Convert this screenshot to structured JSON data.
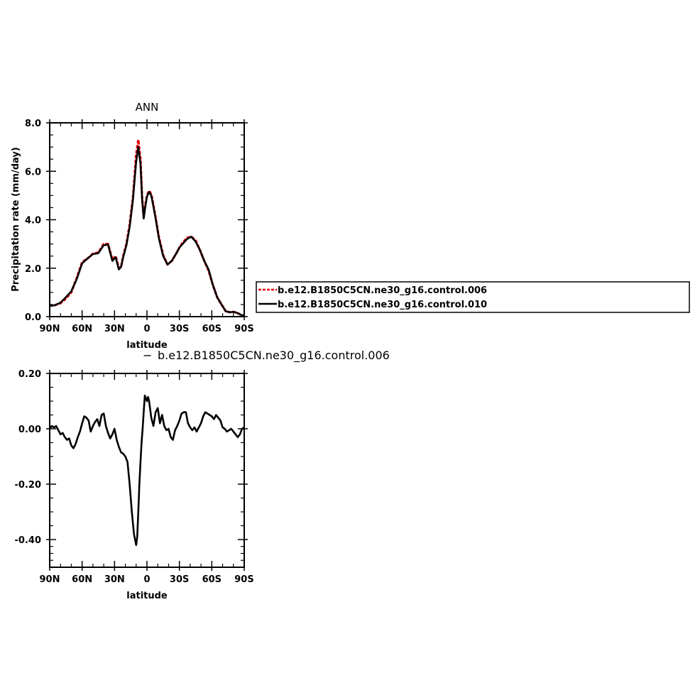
{
  "chart_data": [
    {
      "type": "line",
      "title": "ANN",
      "xlabel": "latitude",
      "ylabel": "Precipitation rate (mm/day)",
      "xlim": [
        -90,
        90
      ],
      "ylim": [
        0,
        8
      ],
      "x_reversed": true,
      "xticks": [
        {
          "value": 90,
          "label": "90N"
        },
        {
          "value": 60,
          "label": "60N"
        },
        {
          "value": 30,
          "label": "30N"
        },
        {
          "value": 0,
          "label": "0"
        },
        {
          "value": -30,
          "label": "30S"
        },
        {
          "value": -60,
          "label": "60S"
        },
        {
          "value": -90,
          "label": "90S"
        }
      ],
      "yticks": [
        {
          "value": 0,
          "label": "0.0"
        },
        {
          "value": 2,
          "label": "2.0"
        },
        {
          "value": 4,
          "label": "4.0"
        },
        {
          "value": 6,
          "label": "6.0"
        },
        {
          "value": 8,
          "label": "8.0"
        }
      ],
      "legend": "right",
      "series": [
        {
          "name": "b.e12.B1850C5CN.ne30_g16.control.006",
          "color": "#e8000b",
          "dash": "dashed",
          "x": [
            90,
            85,
            80,
            75,
            70,
            65,
            60,
            55,
            50,
            45,
            40,
            36,
            32,
            29,
            26,
            24,
            22,
            19,
            16,
            13,
            10,
            8,
            6,
            4.5,
            3,
            1.5,
            0,
            -2,
            -4,
            -6,
            -8,
            -11,
            -15,
            -19,
            -23,
            -27,
            -30,
            -33,
            -37,
            -41,
            -45,
            -49,
            -53,
            -57,
            -61,
            -65,
            -69,
            -73,
            -77,
            -80,
            -83,
            -86,
            -88,
            -90
          ],
          "y": [
            0.45,
            0.48,
            0.55,
            0.75,
            1.0,
            1.6,
            2.25,
            2.4,
            2.6,
            2.65,
            3.0,
            3.0,
            2.35,
            2.5,
            2.0,
            2.05,
            2.5,
            3.0,
            3.8,
            4.9,
            6.7,
            7.3,
            6.5,
            4.9,
            4.1,
            4.6,
            5.0,
            5.2,
            5.05,
            4.6,
            4.1,
            3.3,
            2.55,
            2.15,
            2.3,
            2.6,
            2.85,
            3.05,
            3.25,
            3.3,
            3.15,
            2.75,
            2.3,
            1.9,
            1.3,
            0.8,
            0.5,
            0.22,
            0.18,
            0.2,
            0.16,
            0.1,
            0.05,
            0.05
          ]
        },
        {
          "name": "b.e12.B1850C5CN.ne30_g16.control.010",
          "color": "#000000",
          "dash": "solid",
          "x": [
            90,
            85,
            80,
            75,
            70,
            65,
            60,
            55,
            50,
            45,
            40,
            36,
            32,
            29,
            26,
            24,
            22,
            19,
            16,
            13,
            10,
            8,
            6,
            4.5,
            3,
            1.5,
            0,
            -2,
            -4,
            -6,
            -8,
            -11,
            -15,
            -19,
            -23,
            -27,
            -30,
            -33,
            -37,
            -41,
            -45,
            -49,
            -53,
            -57,
            -61,
            -65,
            -69,
            -73,
            -77,
            -80,
            -83,
            -86,
            -88,
            -90
          ],
          "y": [
            0.44,
            0.47,
            0.58,
            0.8,
            1.05,
            1.55,
            2.2,
            2.4,
            2.58,
            2.62,
            2.95,
            2.97,
            2.3,
            2.45,
            1.95,
            2.05,
            2.45,
            2.95,
            3.7,
            4.8,
            6.4,
            7.0,
            6.3,
            4.85,
            4.05,
            4.55,
            4.95,
            5.15,
            5.0,
            4.55,
            4.05,
            3.25,
            2.5,
            2.15,
            2.3,
            2.6,
            2.85,
            3.0,
            3.2,
            3.3,
            3.1,
            2.75,
            2.3,
            1.95,
            1.3,
            0.8,
            0.5,
            0.22,
            0.18,
            0.2,
            0.16,
            0.1,
            0.05,
            0.05
          ]
        }
      ]
    },
    {
      "type": "line",
      "title": "b.e12.B1850C5CN.ne30_g16.control.006",
      "title_prefix": "−",
      "xlabel": "latitude",
      "ylabel": "",
      "xlim": [
        -90,
        90
      ],
      "ylim": [
        -0.5,
        0.2
      ],
      "x_reversed": true,
      "xticks": [
        {
          "value": 90,
          "label": "90N"
        },
        {
          "value": 60,
          "label": "60N"
        },
        {
          "value": 30,
          "label": "30N"
        },
        {
          "value": 0,
          "label": "0"
        },
        {
          "value": -30,
          "label": "30S"
        },
        {
          "value": -60,
          "label": "60S"
        },
        {
          "value": -90,
          "label": "90S"
        }
      ],
      "yticks": [
        {
          "value": -0.4,
          "label": "-0.40"
        },
        {
          "value": -0.2,
          "label": "-0.20"
        },
        {
          "value": 0,
          "label": "0.00"
        },
        {
          "value": 0.2,
          "label": "0.20"
        }
      ],
      "series": [
        {
          "name": "",
          "color": "#000000",
          "dash": "solid",
          "x": [
            90,
            88,
            86,
            84,
            82,
            80,
            78,
            76,
            74,
            72,
            70,
            68,
            66,
            64,
            62,
            60,
            58,
            56,
            54,
            52,
            50,
            48,
            46,
            44,
            42,
            40,
            38,
            36,
            34,
            32,
            30,
            28,
            26,
            24,
            22,
            20,
            18,
            16,
            14,
            12,
            10,
            9,
            8,
            7,
            6,
            5,
            4,
            3,
            2,
            1,
            0,
            -1,
            -2,
            -4,
            -6,
            -8,
            -10,
            -12,
            -14,
            -16,
            -18,
            -20,
            -22,
            -24,
            -26,
            -28,
            -30,
            -32,
            -34,
            -36,
            -38,
            -40,
            -42,
            -44,
            -46,
            -48,
            -50,
            -52,
            -54,
            -56,
            -58,
            -60,
            -62,
            -64,
            -66,
            -68,
            -70,
            -72,
            -74,
            -76,
            -78,
            -80,
            -82,
            -84,
            -86,
            -88,
            -90
          ],
          "y": [
            0.0,
            0.01,
            0.005,
            0.01,
            -0.005,
            -0.02,
            -0.015,
            -0.03,
            -0.04,
            -0.035,
            -0.06,
            -0.07,
            -0.055,
            -0.03,
            -0.01,
            0.02,
            0.045,
            0.04,
            0.03,
            -0.01,
            0.01,
            0.025,
            0.035,
            0.01,
            0.05,
            0.055,
            0.01,
            -0.015,
            -0.035,
            -0.02,
            0.0,
            -0.04,
            -0.065,
            -0.085,
            -0.09,
            -0.1,
            -0.12,
            -0.2,
            -0.3,
            -0.38,
            -0.42,
            -0.39,
            -0.3,
            -0.2,
            -0.12,
            -0.05,
            0.0,
            0.06,
            0.12,
            0.11,
            0.1,
            0.115,
            0.1,
            0.04,
            0.01,
            0.06,
            0.075,
            0.02,
            0.05,
            0.01,
            -0.005,
            0.0,
            -0.03,
            -0.04,
            -0.005,
            0.01,
            0.03,
            0.055,
            0.06,
            0.06,
            0.02,
            0.005,
            -0.005,
            0.005,
            -0.01,
            0.005,
            0.02,
            0.045,
            0.06,
            0.055,
            0.05,
            0.045,
            0.035,
            0.05,
            0.04,
            0.03,
            0.005,
            0.0,
            -0.01,
            -0.005,
            0.0,
            -0.01,
            -0.02,
            -0.03,
            -0.02,
            0.0,
            0.005
          ]
        }
      ]
    }
  ]
}
